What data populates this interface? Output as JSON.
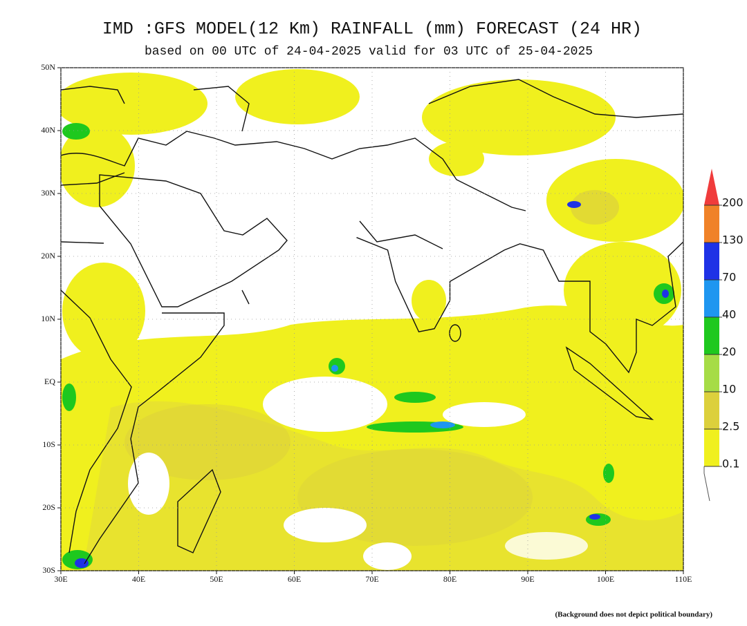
{
  "title": "IMD :GFS MODEL(12 Km) RAINFALL (mm) FORECAST (24 HR)",
  "subtitle": "based on 00 UTC of 24-04-2025 valid for 03 UTC of 25-04-2025",
  "footnote": "(Background does not depict political boundary)",
  "map": {
    "xlim": [
      30,
      110
    ],
    "ylim": [
      -30,
      50
    ],
    "grid": true,
    "xticks": [
      {
        "value": 30,
        "label": "30E"
      },
      {
        "value": 40,
        "label": "40E"
      },
      {
        "value": 50,
        "label": "50E"
      },
      {
        "value": 60,
        "label": "60E"
      },
      {
        "value": 70,
        "label": "70E"
      },
      {
        "value": 80,
        "label": "80E"
      },
      {
        "value": 90,
        "label": "90E"
      },
      {
        "value": 100,
        "label": "100E"
      },
      {
        "value": 110,
        "label": "110E"
      }
    ],
    "yticks": [
      {
        "value": 50,
        "label": "50N"
      },
      {
        "value": 40,
        "label": "40N"
      },
      {
        "value": 30,
        "label": "30N"
      },
      {
        "value": 20,
        "label": "20N"
      },
      {
        "value": 10,
        "label": "10N"
      },
      {
        "value": 0,
        "label": "EQ"
      },
      {
        "value": -10,
        "label": "10S"
      },
      {
        "value": -20,
        "label": "20S"
      },
      {
        "value": -30,
        "label": "30S"
      }
    ]
  },
  "legend": {
    "levels": [
      0.1,
      2.5,
      10,
      20,
      40,
      70,
      130,
      200
    ],
    "colors": [
      "#f0f01e",
      "#dcd03c",
      "#a6dc46",
      "#1ec81e",
      "#1e96f0",
      "#1e32e6",
      "#f08228"
    ],
    "over_color": "#f03c3c"
  }
}
